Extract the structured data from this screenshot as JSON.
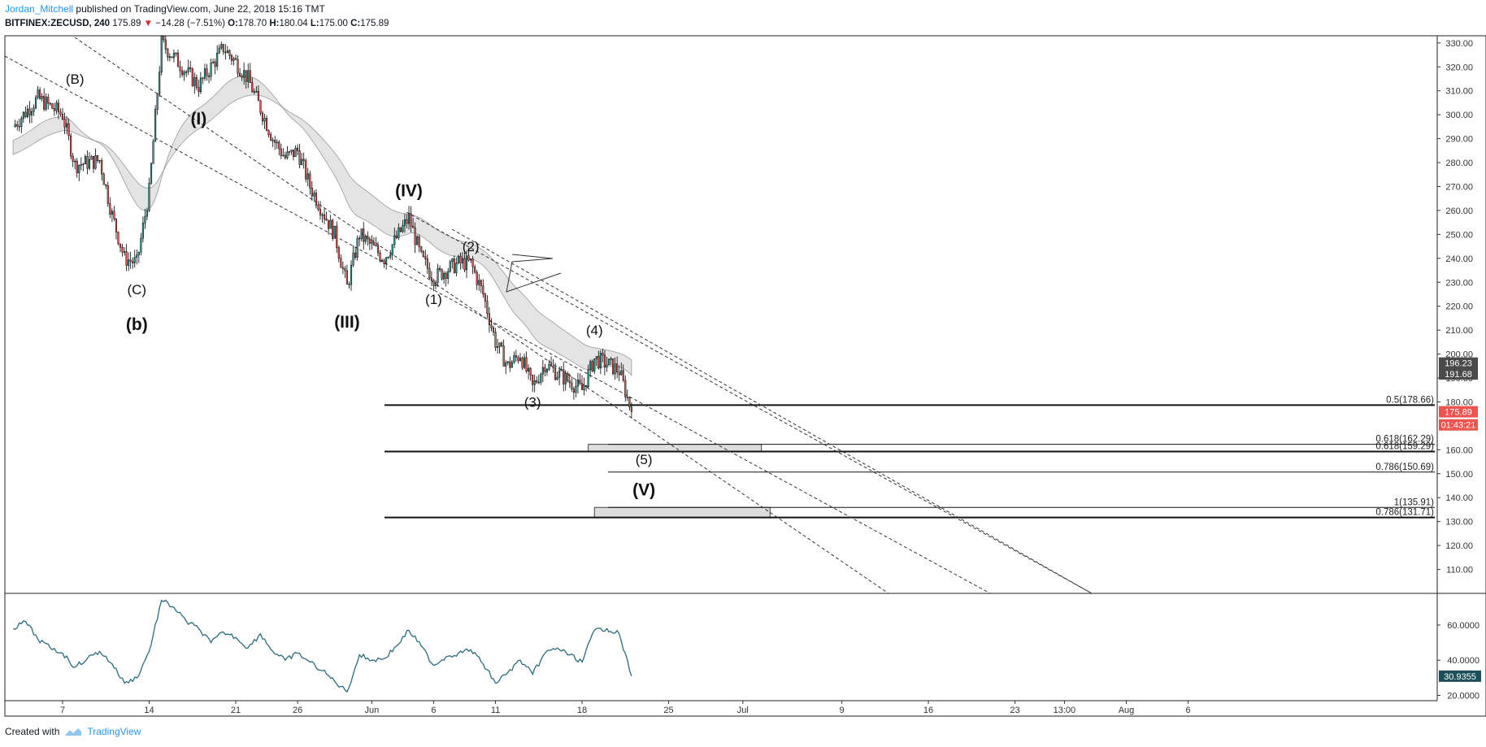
{
  "header": {
    "author": "Jordan_Mitchell",
    "published_text": "published on TradingView.com, June 22, 2018 15:16 TMT"
  },
  "symbol_bar": {
    "symbol": "BITFINEX:ZECUSD, 240",
    "last": "175.89",
    "change_arrow": "▼",
    "change": "−14.28 (−7.51%)",
    "o_label": "O:",
    "o_value": "178.70",
    "h_label": "H:",
    "h_value": "180.04",
    "l_label": "L:",
    "l_value": "175.00",
    "c_label": "C:",
    "c_value": "175.89"
  },
  "footer": {
    "created_with": "Created with",
    "brand": "TradingView"
  },
  "colors": {
    "up": "#26a69a",
    "down": "#ef5350",
    "candle_outline": "#000000",
    "band": "#cfcfcf",
    "rsi": "#2a6b7e",
    "last_price_bg": "#ef5350"
  },
  "chart_data": [
    {
      "type": "candlestick",
      "symbol": "BITFINEX:ZECUSD",
      "timeframe": "240",
      "ylim": [
        100,
        333
      ],
      "y_ticks": [
        "330.00",
        "320.00",
        "310.00",
        "300.00",
        "290.00",
        "280.00",
        "270.00",
        "260.00",
        "250.00",
        "240.00",
        "230.00",
        "220.00",
        "210.00",
        "200.00",
        "190.00",
        "180.00",
        "160.00",
        "150.00",
        "140.00",
        "130.00",
        "120.00",
        "110.00"
      ],
      "x_ticks": [
        "7",
        "14",
        "21",
        "26",
        "Jun",
        "6",
        "11",
        "18",
        "25",
        "Jul",
        "9",
        "16",
        "23",
        "13:00",
        "Aug",
        "6"
      ],
      "price_path": [
        {
          "t": "May 3",
          "p": 295
        },
        {
          "t": "May 5",
          "p": 307
        },
        {
          "t": "May 7",
          "p": 300
        },
        {
          "t": "May 8",
          "p": 279
        },
        {
          "t": "May 10",
          "p": 281
        },
        {
          "t": "May 11",
          "p": 258
        },
        {
          "t": "May 12",
          "p": 240
        },
        {
          "t": "May 13",
          "p": 238
        },
        {
          "t": "May 14",
          "p": 268
        },
        {
          "t": "May 15",
          "p": 330
        },
        {
          "t": "May 17",
          "p": 318
        },
        {
          "t": "May 18",
          "p": 312
        },
        {
          "t": "May 20",
          "p": 328
        },
        {
          "t": "May 21",
          "p": 322
        },
        {
          "t": "May 22",
          "p": 315
        },
        {
          "t": "May 24",
          "p": 290
        },
        {
          "t": "May 25",
          "p": 282
        },
        {
          "t": "May 26",
          "p": 285
        },
        {
          "t": "May 27",
          "p": 270
        },
        {
          "t": "May 29",
          "p": 250
        },
        {
          "t": "May 30",
          "p": 228
        },
        {
          "t": "May 31",
          "p": 250
        },
        {
          "t": "Jun 1",
          "p": 245
        },
        {
          "t": "Jun 2",
          "p": 240
        },
        {
          "t": "Jun 4",
          "p": 257
        },
        {
          "t": "Jun 5",
          "p": 240
        },
        {
          "t": "Jun 6",
          "p": 232
        },
        {
          "t": "Jun 8",
          "p": 238
        },
        {
          "t": "Jun 9",
          "p": 238
        },
        {
          "t": "Jun 10",
          "p": 225
        },
        {
          "t": "Jun 11",
          "p": 205
        },
        {
          "t": "Jun 12",
          "p": 195
        },
        {
          "t": "Jun 13",
          "p": 200
        },
        {
          "t": "Jun 14",
          "p": 186
        },
        {
          "t": "Jun 15",
          "p": 196
        },
        {
          "t": "Jun 16",
          "p": 192
        },
        {
          "t": "Jun 18",
          "p": 185
        },
        {
          "t": "Jun 19",
          "p": 198
        },
        {
          "t": "Jun 20",
          "p": 196
        },
        {
          "t": "Jun 21",
          "p": 193
        },
        {
          "t": "Jun 22",
          "p": 176
        }
      ],
      "price_labels": [
        {
          "text": "196.23",
          "value": 196.23,
          "bg": "#4a4a4a"
        },
        {
          "text": "191.68",
          "value": 191.68,
          "bg": "#4a4a4a"
        },
        {
          "text": "175.89",
          "value": 175.89,
          "bg": "#ef5350"
        },
        {
          "text": "01:43:21",
          "value": 170.4,
          "bg": "#ef5350"
        }
      ],
      "fib_levels": [
        {
          "label": "0.5(178.66)",
          "value": 178.66,
          "weight": "bold"
        },
        {
          "label": "0.618(162.29)",
          "value": 162.29,
          "weight": "thin"
        },
        {
          "label": "0.618(159.29)",
          "value": 159.29,
          "weight": "bold"
        },
        {
          "label": "0.786(150.69)",
          "value": 150.69,
          "weight": "thin"
        },
        {
          "label": "1(135.91)",
          "value": 135.91,
          "weight": "thin"
        },
        {
          "label": "0.786(131.71)",
          "value": 131.71,
          "weight": "bold"
        }
      ],
      "target_zones": [
        {
          "from": 159.29,
          "to": 162.29
        },
        {
          "from": 131.71,
          "to": 135.91
        }
      ],
      "wave_labels": [
        {
          "text": "(B)",
          "t": "May 8",
          "p": 313,
          "bold": false
        },
        {
          "text": "(C)",
          "t": "May 13",
          "p": 225,
          "bold": false
        },
        {
          "text": "(b)",
          "t": "May 13",
          "p": 210,
          "bold": true
        },
        {
          "text": "(I)",
          "t": "May 18",
          "p": 296,
          "bold": true
        },
        {
          "text": "(III)",
          "t": "May 30",
          "p": 211,
          "bold": true
        },
        {
          "text": "(IV)",
          "t": "Jun 4",
          "p": 266,
          "bold": true
        },
        {
          "text": "(1)",
          "t": "Jun 6",
          "p": 221,
          "bold": false
        },
        {
          "text": "(2)",
          "t": "Jun 9",
          "p": 243,
          "bold": false
        },
        {
          "text": "(3)",
          "t": "Jun 14",
          "p": 178,
          "bold": false
        },
        {
          "text": "(4)",
          "t": "Jun 19",
          "p": 208,
          "bold": false
        },
        {
          "text": "(5)",
          "t": "Jun 23",
          "p": 154,
          "bold": false
        },
        {
          "text": "(V)",
          "t": "Jun 23",
          "p": 141,
          "bold": true
        }
      ]
    },
    {
      "type": "line",
      "name": "RSI",
      "ylim": [
        17,
        78
      ],
      "y_ticks": [
        "60.0000",
        "40.0000",
        "20.0000"
      ],
      "last_value": "30.9355",
      "points": [
        {
          "t": "May 3",
          "v": 58
        },
        {
          "t": "May 4",
          "v": 62
        },
        {
          "t": "May 5",
          "v": 52
        },
        {
          "t": "May 6",
          "v": 47
        },
        {
          "t": "May 7",
          "v": 44
        },
        {
          "t": "May 8",
          "v": 36
        },
        {
          "t": "May 9",
          "v": 41
        },
        {
          "t": "May 10",
          "v": 45
        },
        {
          "t": "May 11",
          "v": 38
        },
        {
          "t": "May 12",
          "v": 27
        },
        {
          "t": "May 13",
          "v": 30
        },
        {
          "t": "May 14",
          "v": 45
        },
        {
          "t": "May 15",
          "v": 74
        },
        {
          "t": "May 16",
          "v": 70
        },
        {
          "t": "May 17",
          "v": 62
        },
        {
          "t": "May 18",
          "v": 58
        },
        {
          "t": "May 19",
          "v": 50
        },
        {
          "t": "May 20",
          "v": 56
        },
        {
          "t": "May 21",
          "v": 53
        },
        {
          "t": "May 22",
          "v": 47
        },
        {
          "t": "May 23",
          "v": 55
        },
        {
          "t": "May 24",
          "v": 45
        },
        {
          "t": "May 25",
          "v": 40
        },
        {
          "t": "May 26",
          "v": 44
        },
        {
          "t": "May 27",
          "v": 39
        },
        {
          "t": "May 28",
          "v": 34
        },
        {
          "t": "May 29",
          "v": 28
        },
        {
          "t": "May 30",
          "v": 22
        },
        {
          "t": "May 31",
          "v": 43
        },
        {
          "t": "Jun 1",
          "v": 40
        },
        {
          "t": "Jun 2",
          "v": 41
        },
        {
          "t": "Jun 3",
          "v": 48
        },
        {
          "t": "Jun 4",
          "v": 57
        },
        {
          "t": "Jun 5",
          "v": 48
        },
        {
          "t": "Jun 6",
          "v": 37
        },
        {
          "t": "Jun 7",
          "v": 42
        },
        {
          "t": "Jun 8",
          "v": 44
        },
        {
          "t": "Jun 9",
          "v": 46
        },
        {
          "t": "Jun 10",
          "v": 38
        },
        {
          "t": "Jun 11",
          "v": 27
        },
        {
          "t": "Jun 12",
          "v": 33
        },
        {
          "t": "Jun 13",
          "v": 40
        },
        {
          "t": "Jun 14",
          "v": 32
        },
        {
          "t": "Jun 15",
          "v": 44
        },
        {
          "t": "Jun 16",
          "v": 47
        },
        {
          "t": "Jun 17",
          "v": 43
        },
        {
          "t": "Jun 18",
          "v": 39
        },
        {
          "t": "Jun 19",
          "v": 57
        },
        {
          "t": "Jun 20",
          "v": 58
        },
        {
          "t": "Jun 21",
          "v": 55
        },
        {
          "t": "Jun 22",
          "v": 31
        }
      ]
    }
  ]
}
